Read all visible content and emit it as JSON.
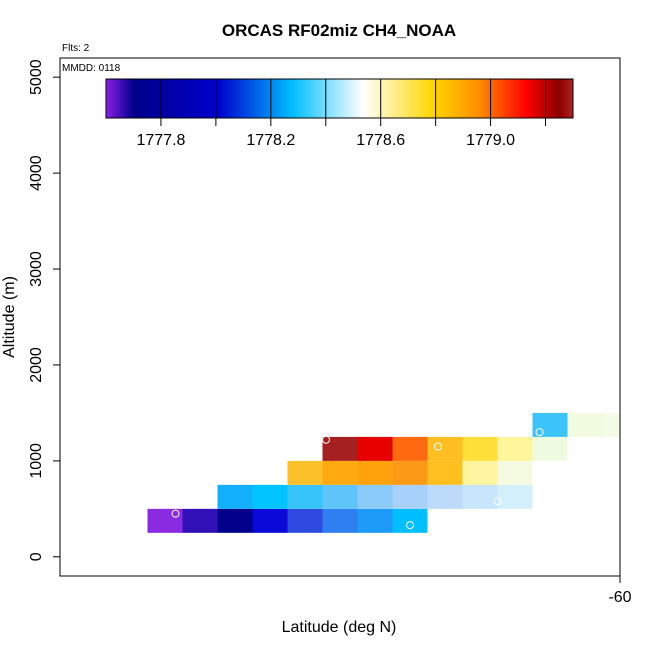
{
  "chart_data": {
    "type": "heatmap",
    "title": "ORCAS RF02miz CH4_NOAA",
    "annotations": {
      "flights": "Flts: 2",
      "mmdd": "MMDD: 0118"
    },
    "xlabel": "Latitude (deg N)",
    "ylabel": "Altitude (m)",
    "xlim": [
      -68,
      -60
    ],
    "ylim": [
      -200,
      5200
    ],
    "x_ticks": [
      -60
    ],
    "x_tick_labels": [
      "-60"
    ],
    "y_ticks": [
      0,
      1000,
      2000,
      3000,
      4000,
      5000
    ],
    "y_tick_labels": [
      "0",
      "1000",
      "2000",
      "3000",
      "4000",
      "5000"
    ],
    "colorbar": {
      "range": [
        1777.6,
        1779.3
      ],
      "ticks": [
        1777.8,
        1778.2,
        1778.6,
        1779.0
      ],
      "tick_labels": [
        "1777.8",
        "1778.2",
        "1778.6",
        "1779.0"
      ],
      "stops": [
        "#8b1fe8",
        "#00008b",
        "#0000cd",
        "#00bfff",
        "#ffffff",
        "#ffd700",
        "#ff8c00",
        "#ff0000",
        "#8b0000",
        "#b22222"
      ],
      "stop_positions": [
        0,
        0.06,
        0.24,
        0.4,
        0.55,
        0.7,
        0.8,
        0.9,
        0.97,
        1.0
      ]
    },
    "cell_width_deg": 0.5,
    "cell_height_m": 250,
    "cells": [
      {
        "x": -66.5,
        "y": 375,
        "color": "#8a2be2",
        "value": 1777.7
      },
      {
        "x": -66.0,
        "y": 375,
        "color": "#3210b8",
        "value": 1777.8
      },
      {
        "x": -65.5,
        "y": 375,
        "color": "#00008b",
        "value": 1777.9
      },
      {
        "x": -65.0,
        "y": 375,
        "color": "#0a0ad8",
        "value": 1778.0
      },
      {
        "x": -64.5,
        "y": 375,
        "color": "#2e4ae0",
        "value": 1778.05
      },
      {
        "x": -64.0,
        "y": 375,
        "color": "#2f7ff0",
        "value": 1778.1
      },
      {
        "x": -63.5,
        "y": 375,
        "color": "#1e9af8",
        "value": 1778.15
      },
      {
        "x": -63.0,
        "y": 375,
        "color": "#00bfff",
        "value": 1778.2
      },
      {
        "x": -65.5,
        "y": 625,
        "color": "#12b0fb",
        "value": 1778.2
      },
      {
        "x": -65.0,
        "y": 625,
        "color": "#00c3ff",
        "value": 1778.2
      },
      {
        "x": -64.5,
        "y": 625,
        "color": "#36c4fb",
        "value": 1778.25
      },
      {
        "x": -64.0,
        "y": 625,
        "color": "#5ec4fa",
        "value": 1778.3
      },
      {
        "x": -63.5,
        "y": 625,
        "color": "#8acbfa",
        "value": 1778.35
      },
      {
        "x": -63.0,
        "y": 625,
        "color": "#a7d0fa",
        "value": 1778.4
      },
      {
        "x": -62.5,
        "y": 625,
        "color": "#bcdbfa",
        "value": 1778.45
      },
      {
        "x": -62.0,
        "y": 625,
        "color": "#c7e5fb",
        "value": 1778.5
      },
      {
        "x": -61.5,
        "y": 625,
        "color": "#d4effc",
        "value": 1778.5
      },
      {
        "x": -64.5,
        "y": 875,
        "color": "#fcc02a",
        "value": 1778.9
      },
      {
        "x": -64.0,
        "y": 875,
        "color": "#ffaa10",
        "value": 1778.95
      },
      {
        "x": -63.5,
        "y": 875,
        "color": "#ffa20c",
        "value": 1779.0
      },
      {
        "x": -63.0,
        "y": 875,
        "color": "#fc9a18",
        "value": 1779.0
      },
      {
        "x": -62.5,
        "y": 875,
        "color": "#ffbf20",
        "value": 1778.9
      },
      {
        "x": -62.0,
        "y": 875,
        "color": "#fff5a0",
        "value": 1778.75
      },
      {
        "x": -61.5,
        "y": 875,
        "color": "#f4fbe0",
        "value": 1778.6
      },
      {
        "x": -64.0,
        "y": 1125,
        "color": "#a52020",
        "value": 1779.25
      },
      {
        "x": -63.5,
        "y": 1125,
        "color": "#e60000",
        "value": 1779.15
      },
      {
        "x": -63.0,
        "y": 1125,
        "color": "#ff6a10",
        "value": 1779.05
      },
      {
        "x": -62.5,
        "y": 1125,
        "color": "#ffbe22",
        "value": 1778.9
      },
      {
        "x": -62.0,
        "y": 1125,
        "color": "#ffdf3a",
        "value": 1778.8
      },
      {
        "x": -61.5,
        "y": 1125,
        "color": "#fff59a",
        "value": 1778.75
      },
      {
        "x": -61.0,
        "y": 1125,
        "color": "#effbe0",
        "value": 1778.6
      },
      {
        "x": -61.0,
        "y": 1375,
        "color": "#3cc4fa",
        "value": 1778.25
      },
      {
        "x": -60.5,
        "y": 1375,
        "color": "#f0fbe0",
        "value": 1778.6
      },
      {
        "x": -60.0,
        "y": 1375,
        "color": "#f4fbe6",
        "value": 1778.6
      }
    ],
    "points": [
      {
        "x": -66.35,
        "y": 450
      },
      {
        "x": -64.2,
        "y": 1220
      },
      {
        "x": -63.0,
        "y": 330
      },
      {
        "x": -62.6,
        "y": 1150
      },
      {
        "x": -61.75,
        "y": 580
      },
      {
        "x": -61.15,
        "y": 1300
      }
    ]
  }
}
